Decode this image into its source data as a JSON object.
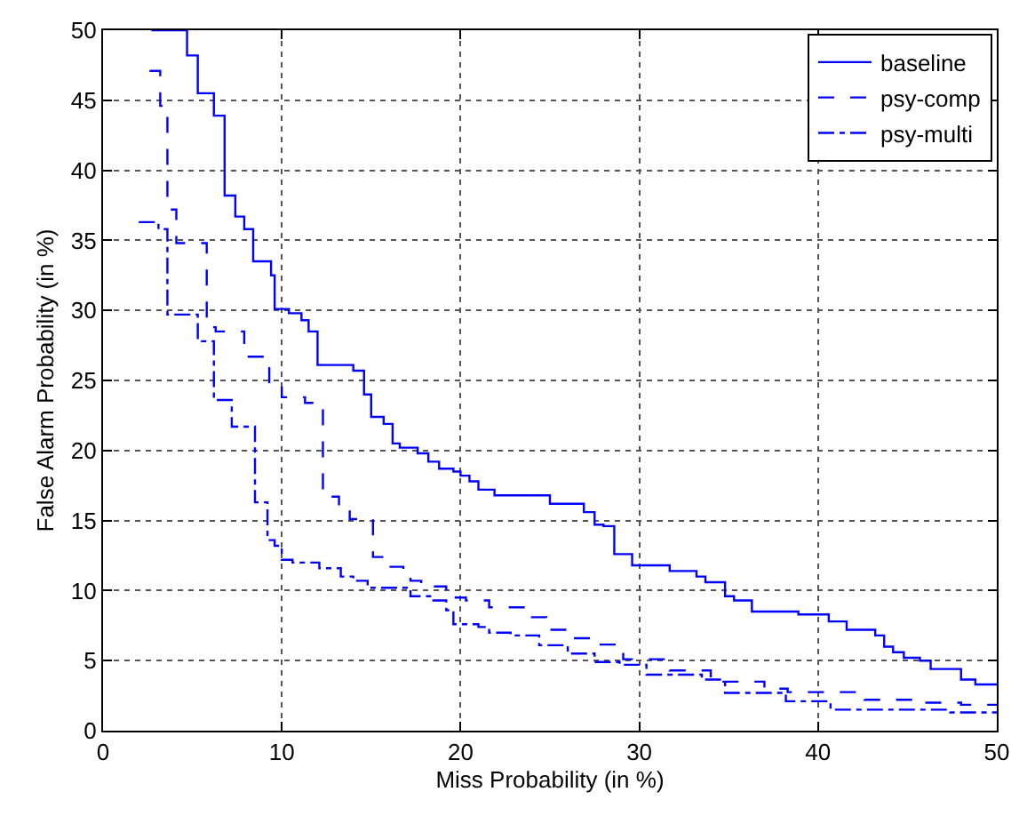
{
  "chart_data": {
    "type": "step",
    "xlabel": "Miss Probability (in %)",
    "ylabel": "False Alarm Probability (in %)",
    "xlim": [
      0,
      50
    ],
    "ylim": [
      0,
      50
    ],
    "xticks": [
      0,
      10,
      20,
      30,
      40,
      50
    ],
    "yticks": [
      0,
      5,
      10,
      15,
      20,
      25,
      30,
      35,
      40,
      45,
      50
    ],
    "grid": true,
    "legend": "top right",
    "marker": "none",
    "series": [
      {
        "name": "baseline",
        "color": "#0000ff",
        "line_style": "solid",
        "x": [
          2.7,
          4.7,
          5.3,
          6.2,
          6.8,
          7.4,
          7.9,
          8.4,
          9.4,
          9.6,
          10.4,
          11.1,
          11.5,
          12.0,
          14.0,
          14.6,
          15.0,
          15.7,
          16.2,
          16.6,
          17.6,
          18.2,
          18.8,
          19.6,
          20.0,
          20.5,
          21.0,
          21.9,
          25.0,
          26.9,
          27.5,
          28.0,
          28.6,
          29.6,
          31.7,
          33.2,
          33.7,
          34.8,
          35.3,
          36.3,
          38.9,
          40.6,
          41.6,
          43.2,
          43.7,
          44.2,
          44.8,
          45.7,
          46.3,
          48.0,
          48.8,
          50
        ],
        "values": [
          50,
          48.2,
          45.5,
          43.9,
          38.2,
          36.7,
          35.8,
          33.5,
          32.5,
          30.1,
          29.8,
          29.3,
          28.5,
          26.1,
          25.7,
          24.0,
          22.4,
          21.9,
          20.5,
          20.2,
          19.8,
          19.2,
          18.7,
          18.5,
          18.2,
          17.8,
          17.2,
          16.8,
          16.2,
          15.6,
          14.7,
          14.6,
          12.6,
          11.8,
          11.4,
          11.0,
          10.6,
          9.6,
          9.3,
          8.5,
          8.3,
          7.8,
          7.2,
          6.8,
          6.0,
          5.6,
          5.2,
          5.0,
          4.4,
          3.65,
          3.3,
          3.3
        ]
      },
      {
        "name": "psy-comp",
        "color": "#0000ff",
        "line_style": "dashed",
        "x": [
          2.6,
          3.2,
          3.6,
          4.1,
          5.8,
          6.3,
          7.9,
          9.3,
          10.0,
          11.3,
          12.3,
          13.2,
          13.8,
          15.1,
          15.7,
          16.8,
          17.2,
          17.8,
          19.2,
          19.6,
          20.3,
          21.6,
          24.0,
          24.8,
          26.0,
          27.7,
          29.1,
          31.7,
          34.0,
          37.0,
          38.3,
          42.6,
          45.3,
          48.0,
          50
        ],
        "values": [
          47.1,
          44.6,
          37.2,
          34.8,
          28.8,
          28.5,
          26.7,
          24.7,
          23.8,
          23.4,
          16.7,
          15.8,
          15.1,
          12.4,
          11.7,
          11.2,
          10.7,
          10.3,
          10.0,
          9.5,
          9.3,
          8.8,
          8.1,
          7.2,
          6.6,
          6.15,
          5.1,
          4.3,
          3.5,
          3.0,
          2.75,
          2.2,
          2.0,
          1.85,
          1.85
        ]
      },
      {
        "name": "psy-multi",
        "color": "#0000ff",
        "line_style": "dashdot",
        "x": [
          2.0,
          3.1,
          3.6,
          5.3,
          6.2,
          7.2,
          8.5,
          9.2,
          9.6,
          10.0,
          10.6,
          12.1,
          13.3,
          14.0,
          14.8,
          17.2,
          18.3,
          19.2,
          19.6,
          21.0,
          21.6,
          22.8,
          24.4,
          26.0,
          27.5,
          28.9,
          30.4,
          33.5,
          34.8,
          38.2,
          40.7,
          47.4,
          50
        ],
        "values": [
          36.3,
          35.8,
          29.7,
          27.8,
          23.6,
          21.7,
          16.3,
          13.6,
          13.2,
          12.2,
          12.0,
          11.6,
          11.0,
          10.7,
          10.2,
          9.6,
          9.3,
          8.6,
          7.6,
          7.4,
          7.0,
          6.8,
          6.1,
          5.5,
          4.9,
          4.7,
          4.0,
          3.65,
          2.7,
          2.1,
          1.5,
          1.3,
          1.3
        ]
      }
    ]
  }
}
